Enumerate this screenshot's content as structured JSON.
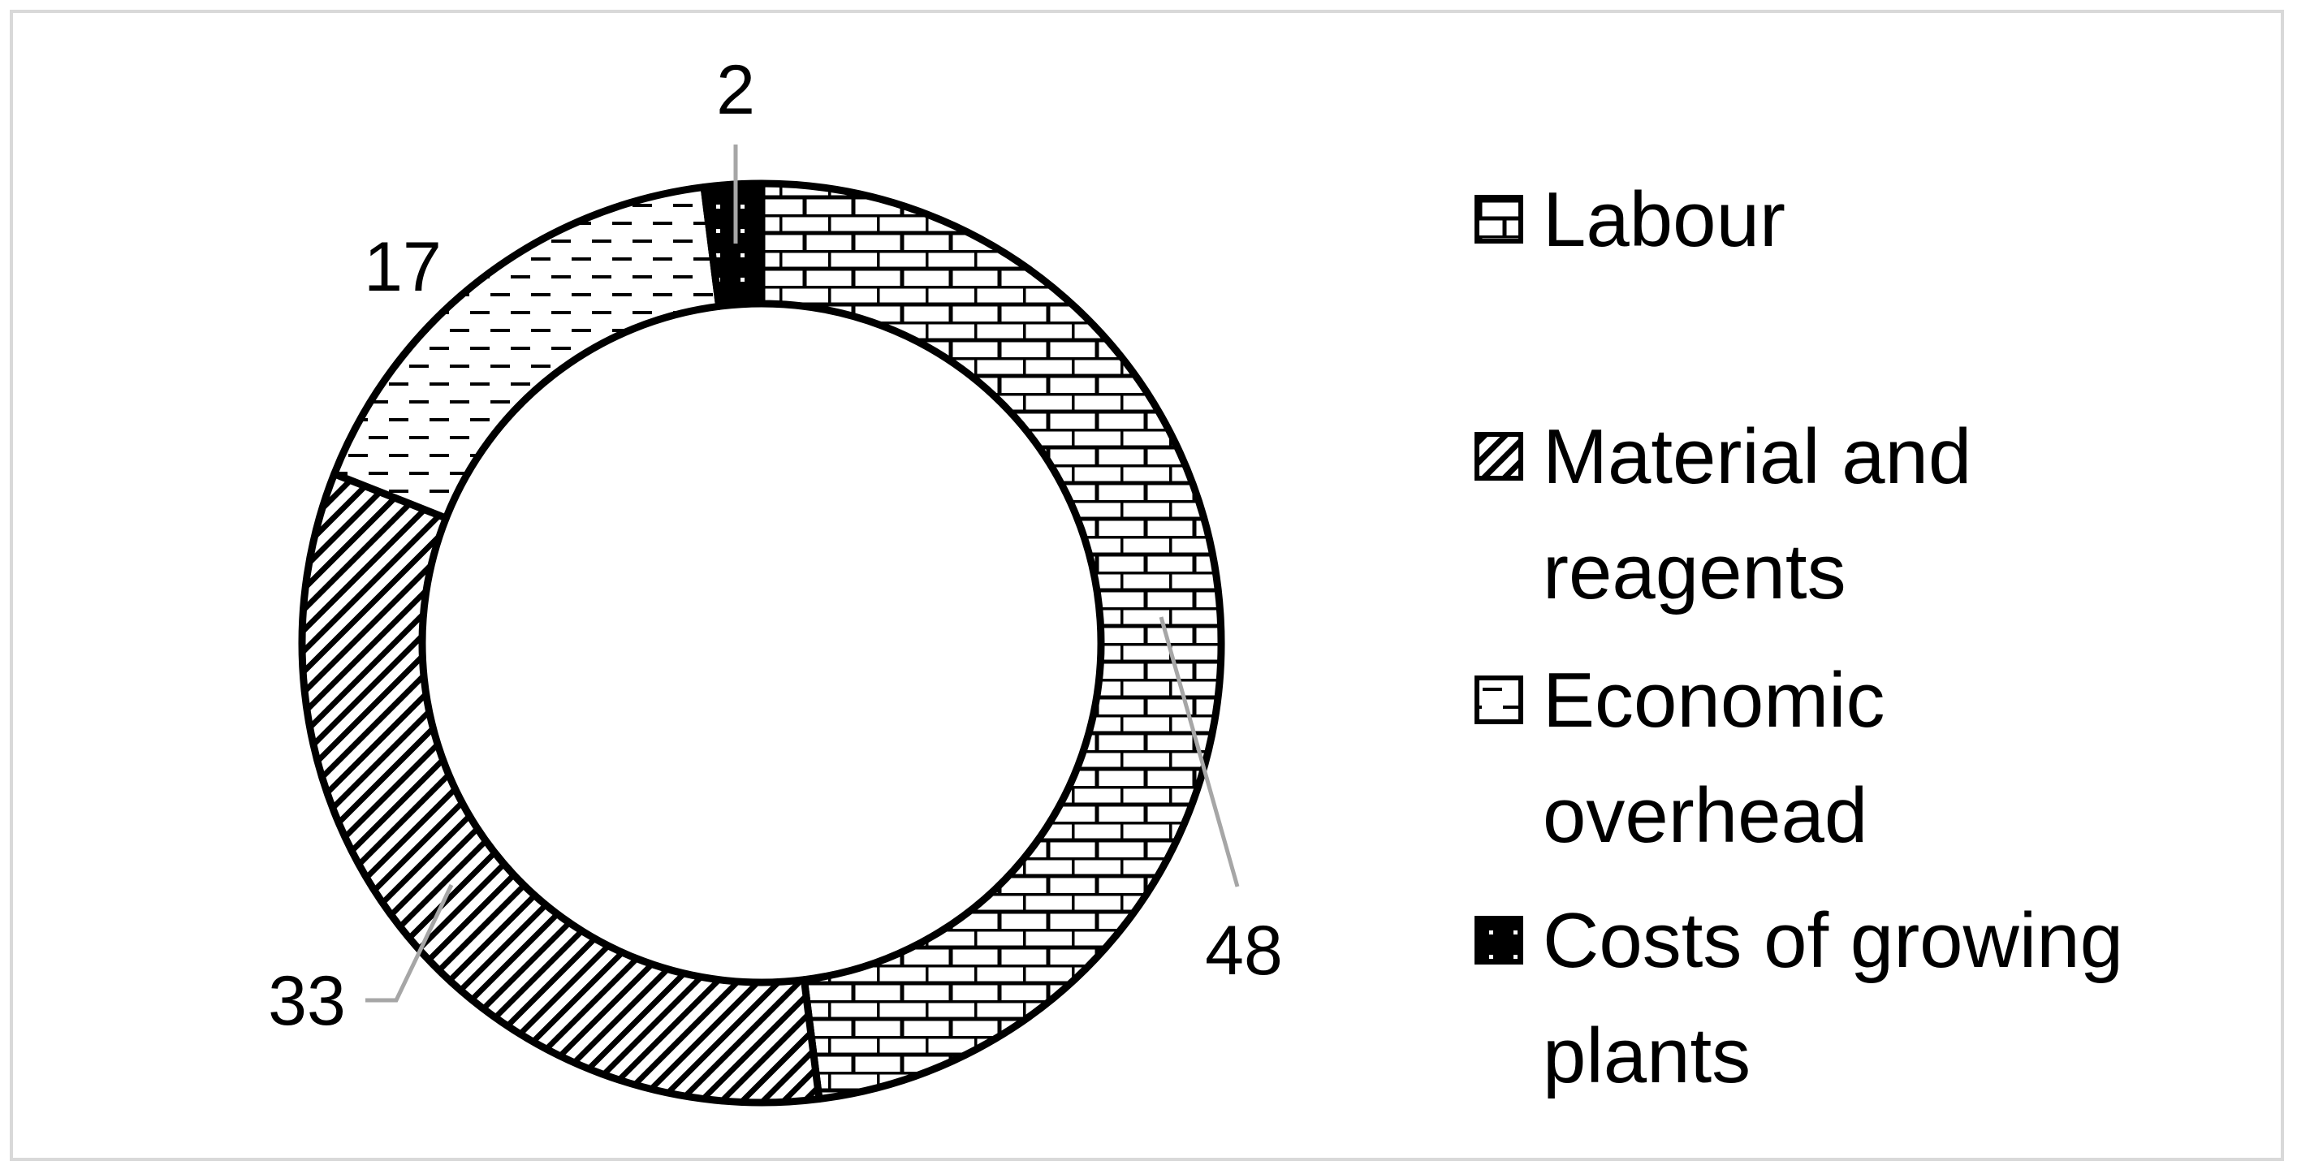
{
  "chart_data": {
    "type": "pie",
    "variant": "doughnut",
    "categories": [
      "Labour",
      "Material and reagents",
      "Economic overhead",
      "Costs of growing plants"
    ],
    "values": [
      48,
      33,
      17,
      2
    ],
    "data_labels": [
      "48",
      "33",
      "17",
      "2"
    ],
    "series": [
      {
        "name": "Labour",
        "value": 48,
        "pattern": "brick"
      },
      {
        "name": "Material and reagents",
        "value": 33,
        "pattern": "diagonal-stripes"
      },
      {
        "name": "Economic overhead",
        "value": 17,
        "pattern": "dashed-horizontal"
      },
      {
        "name": "Costs of growing plants",
        "value": 2,
        "pattern": "solid-dotted"
      }
    ],
    "legend_position": "right",
    "colors": {
      "ink": "#000000",
      "background": "#ffffff",
      "leader_line": "#a6a6a6",
      "frame": "#d9d9d9"
    }
  },
  "legend": {
    "items": [
      {
        "label": "Labour"
      },
      {
        "label": "Material and reagents"
      },
      {
        "label": "Economic overhead"
      },
      {
        "label": "Costs of growing plants"
      }
    ]
  }
}
